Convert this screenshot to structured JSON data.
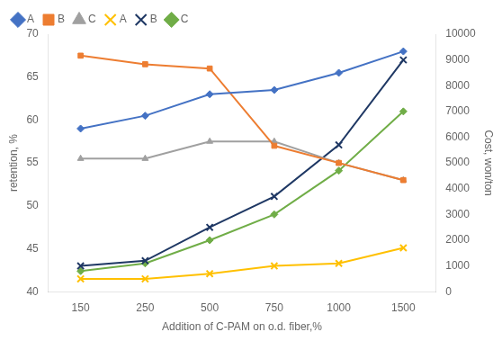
{
  "chart_data": {
    "type": "line",
    "xlabel": "Addition of C-PAM on o.d. fiber,%",
    "ylabel": "retention, %",
    "y2label": "Cost, won/ton",
    "categories": [
      "150",
      "250",
      "500",
      "750",
      "1000",
      "1500"
    ],
    "series": [
      {
        "name": "A",
        "color": "#4472C4",
        "marker": "diamond",
        "values": [
          59.0,
          60.5,
          63.0,
          63.5,
          65.5,
          68.0
        ]
      },
      {
        "name": "B",
        "color": "#ED7D31",
        "marker": "square",
        "values": [
          67.5,
          66.5,
          66.0,
          57.0,
          55.0,
          53.0
        ]
      },
      {
        "name": "C",
        "color": "#A0A0A0",
        "marker": "triangle",
        "values": [
          55.5,
          55.5,
          57.5,
          57.5,
          55.0,
          53.0
        ]
      },
      {
        "name": "A",
        "color": "#FFC000",
        "marker": "x",
        "axis": "y2",
        "values": [
          500,
          500,
          700,
          1000,
          1100,
          1700
        ]
      },
      {
        "name": "B",
        "color": "#1F3864",
        "marker": "x",
        "axis": "y2",
        "values": [
          1000,
          1200,
          2500,
          3700,
          5700,
          9000
        ]
      },
      {
        "name": "C",
        "color": "#70AD47",
        "marker": "diamond",
        "axis": "y2",
        "values": [
          800,
          1100,
          2000,
          3000,
          4700,
          7000
        ]
      }
    ],
    "ylim": [
      40,
      70
    ],
    "yticks": [
      40,
      45,
      50,
      55,
      60,
      65,
      70
    ],
    "y2lim": [
      0,
      10000
    ],
    "y2ticks": [
      0,
      1000,
      2000,
      3000,
      4000,
      5000,
      6000,
      7000,
      8000,
      9000,
      10000
    ],
    "grid": false,
    "legend": "upper left"
  }
}
